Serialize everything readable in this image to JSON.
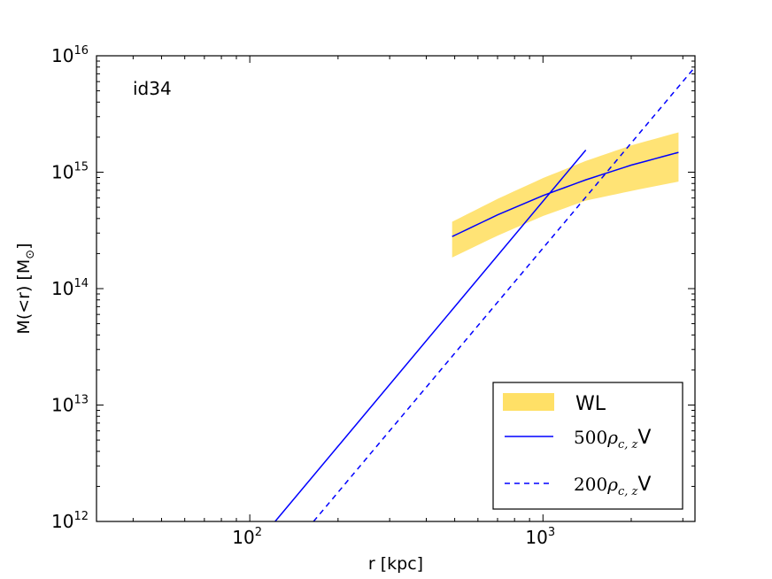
{
  "chart_data": {
    "type": "line",
    "title": "",
    "annotation": "id34",
    "xlabel": "r [kpc]",
    "ylabel_prefix": "M(<r) [M",
    "ylabel_sub": "⊙",
    "ylabel_suffix": "]",
    "xscale": "log",
    "yscale": "log",
    "xlim": [
      30,
      3300
    ],
    "ylim": [
      1000000000000.0,
      1e+16
    ],
    "x_ticks": [
      {
        "value": 100,
        "base": "10",
        "exp": "2"
      },
      {
        "value": 1000,
        "base": "10",
        "exp": "3"
      }
    ],
    "y_ticks": [
      {
        "value": 1000000000000.0,
        "base": "10",
        "exp": "12"
      },
      {
        "value": 10000000000000.0,
        "base": "10",
        "exp": "13"
      },
      {
        "value": 100000000000000.0,
        "base": "10",
        "exp": "14"
      },
      {
        "value": 1000000000000000.0,
        "base": "10",
        "exp": "15"
      },
      {
        "value": 1e+16,
        "base": "10",
        "exp": "16"
      }
    ],
    "series": [
      {
        "name": "WL",
        "kind": "band",
        "color": "#ffe066",
        "line_color": "#0000ff",
        "x": [
          490,
          700,
          1000,
          1400,
          2000,
          2900
        ],
        "y_mid": [
          280000000000000.0,
          430000000000000.0,
          630000000000000.0,
          860000000000000.0,
          1150000000000000.0,
          1480000000000000.0
        ],
        "y_low": [
          185000000000000.0,
          285000000000000.0,
          420000000000000.0,
          570000000000000.0,
          690000000000000.0,
          830000000000000.0
        ],
        "y_high": [
          375000000000000.0,
          590000000000000.0,
          890000000000000.0,
          1250000000000000.0,
          1700000000000000.0,
          2200000000000000.0
        ]
      },
      {
        "name": "500ρc,zV",
        "legend_num": "500",
        "legend_rho": "ρ",
        "legend_sub": "c, z",
        "legend_v": "V",
        "kind": "line",
        "style": "solid",
        "color": "#0000ff",
        "x": [
          122,
          1400
        ],
        "y": [
          1000000000000.0,
          1550000000000000.0
        ]
      },
      {
        "name": "200ρc,zV",
        "legend_num": "200",
        "legend_rho": "ρ",
        "legend_sub": "c, z",
        "legend_v": "V",
        "kind": "line",
        "style": "dashed",
        "color": "#0000ff",
        "x": [
          165,
          3300
        ],
        "y": [
          1000000000000.0,
          8000000000000000.0
        ]
      }
    ],
    "legend": {
      "location": "lower-right",
      "entries": [
        "WL",
        "500ρc,zV",
        "200ρc,zV"
      ]
    }
  }
}
